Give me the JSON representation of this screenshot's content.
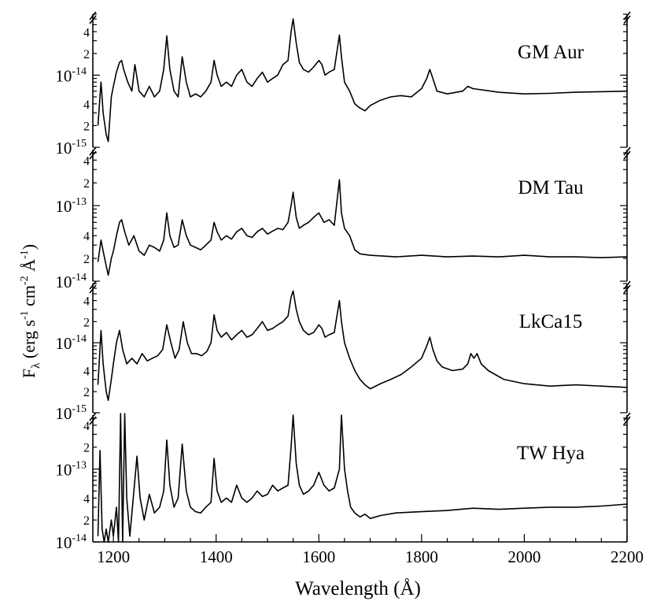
{
  "chart_data": {
    "type": "line",
    "xlabel": "Wavelength (Å)",
    "ylabel": "Fλ (erg s⁻¹ cm⁻² Å⁻¹)",
    "ylabel_parts": {
      "main": "F",
      "sub": "λ",
      "rest": " (erg s",
      "e1": "-1",
      "cm": " cm",
      "e2": "-2",
      "a": " Å",
      "e3": "-1",
      "close": ")"
    },
    "xlim": [
      1160,
      2200
    ],
    "x_ticks": [
      1200,
      1400,
      1600,
      1800,
      2000,
      2200
    ],
    "x_tick_labels": [
      "1200",
      "1400",
      "1600",
      "1800",
      "2000",
      "2200"
    ],
    "yscale": "log",
    "grid": false,
    "line_color": "#000000",
    "panels": [
      {
        "name": "GM Aur",
        "ylim": [
          1e-15,
          7e-14
        ],
        "ticks": [
          {
            "value": 1e-15,
            "label": "10",
            "exp": "-15"
          },
          {
            "value": 2e-15,
            "label": "2"
          },
          {
            "value": 4e-15,
            "label": "4"
          },
          {
            "value": 1e-14,
            "label": "10",
            "exp": "-14"
          },
          {
            "value": 2e-14,
            "label": "2"
          },
          {
            "value": 4e-14,
            "label": "4"
          }
        ],
        "x": [
          1170,
          1176,
          1180,
          1186,
          1190,
          1196,
          1200,
          1206,
          1212,
          1216,
          1220,
          1228,
          1236,
          1242,
          1250,
          1260,
          1270,
          1280,
          1290,
          1298,
          1304,
          1310,
          1318,
          1326,
          1334,
          1342,
          1350,
          1360,
          1370,
          1380,
          1390,
          1396,
          1402,
          1410,
          1420,
          1430,
          1440,
          1450,
          1460,
          1470,
          1480,
          1490,
          1500,
          1510,
          1520,
          1530,
          1540,
          1546,
          1550,
          1556,
          1562,
          1570,
          1580,
          1590,
          1600,
          1606,
          1612,
          1620,
          1630,
          1640,
          1644,
          1650,
          1660,
          1670,
          1680,
          1690,
          1700,
          1720,
          1740,
          1760,
          1780,
          1800,
          1810,
          1816,
          1822,
          1830,
          1850,
          1880,
          1890,
          1900,
          1950,
          2000,
          2050,
          2100,
          2150,
          2200
        ],
        "y": [
          2e-15,
          8e-15,
          3e-15,
          1.5e-15,
          1.2e-15,
          5e-15,
          7e-15,
          1.1e-14,
          1.5e-14,
          1.6e-14,
          1.2e-14,
          8e-15,
          6e-15,
          1.4e-14,
          6e-15,
          5e-15,
          7e-15,
          5e-15,
          6e-15,
          1.2e-14,
          3.5e-14,
          1.2e-14,
          6e-15,
          5e-15,
          1.8e-14,
          8e-15,
          5e-15,
          5.5e-15,
          5e-15,
          6e-15,
          8e-15,
          1.6e-14,
          1e-14,
          7e-15,
          8e-15,
          7e-15,
          1e-14,
          1.2e-14,
          8e-15,
          7e-15,
          9e-15,
          1.1e-14,
          8e-15,
          9e-15,
          1e-14,
          1.4e-14,
          1.6e-14,
          4e-14,
          6e-14,
          2.8e-14,
          1.5e-14,
          1.2e-14,
          1.1e-14,
          1.3e-14,
          1.6e-14,
          1.4e-14,
          1e-14,
          1.1e-14,
          1.2e-14,
          3.6e-14,
          1.8e-14,
          8e-15,
          6e-15,
          4e-15,
          3.5e-15,
          3.2e-15,
          3.8e-15,
          4.5e-15,
          5e-15,
          5.2e-15,
          5e-15,
          6.5e-15,
          9e-15,
          1.2e-14,
          9e-15,
          6e-15,
          5.5e-15,
          6e-15,
          7e-15,
          6.5e-15,
          5.8e-15,
          5.5e-15,
          5.6e-15,
          5.8e-15,
          5.9e-15,
          6e-15
        ]
      },
      {
        "name": "DM Tau",
        "ylim": [
          1e-14,
          5.5e-13
        ],
        "ticks": [
          {
            "value": 1e-14,
            "label": "10",
            "exp": "-14"
          },
          {
            "value": 2e-14,
            "label": "2"
          },
          {
            "value": 4e-14,
            "label": "4"
          },
          {
            "value": 1e-13,
            "label": "10",
            "exp": "-13"
          },
          {
            "value": 2e-13,
            "label": "2"
          },
          {
            "value": 4e-13,
            "label": "4"
          }
        ],
        "x": [
          1170,
          1176,
          1180,
          1186,
          1190,
          1196,
          1200,
          1206,
          1212,
          1216,
          1222,
          1230,
          1240,
          1250,
          1260,
          1270,
          1280,
          1290,
          1298,
          1304,
          1310,
          1318,
          1326,
          1334,
          1342,
          1350,
          1360,
          1370,
          1380,
          1390,
          1396,
          1402,
          1410,
          1420,
          1430,
          1440,
          1450,
          1460,
          1470,
          1480,
          1490,
          1500,
          1510,
          1520,
          1530,
          1540,
          1546,
          1550,
          1556,
          1562,
          1570,
          1580,
          1590,
          1600,
          1610,
          1620,
          1630,
          1640,
          1644,
          1650,
          1660,
          1670,
          1680,
          1700,
          1750,
          1800,
          1850,
          1900,
          1950,
          2000,
          2050,
          2100,
          2150,
          2200
        ],
        "y": [
          1.8e-14,
          3.5e-14,
          2.5e-14,
          1.6e-14,
          1.2e-14,
          2e-14,
          2.5e-14,
          4e-14,
          6e-14,
          6.5e-14,
          4.5e-14,
          3e-14,
          4e-14,
          2.5e-14,
          2.2e-14,
          3e-14,
          2.8e-14,
          2.5e-14,
          3.5e-14,
          8e-14,
          4e-14,
          2.8e-14,
          3e-14,
          6.5e-14,
          4e-14,
          3e-14,
          2.8e-14,
          2.6e-14,
          3e-14,
          3.5e-14,
          6e-14,
          4.5e-14,
          3.5e-14,
          4e-14,
          3.6e-14,
          4.5e-14,
          5e-14,
          4e-14,
          3.8e-14,
          4.5e-14,
          5e-14,
          4.2e-14,
          4.6e-14,
          5e-14,
          4.8e-14,
          6e-14,
          1e-13,
          1.5e-13,
          7e-14,
          5e-14,
          5.5e-14,
          6e-14,
          7e-14,
          8e-14,
          6e-14,
          6.5e-14,
          5.5e-14,
          2.2e-13,
          8e-14,
          5e-14,
          4e-14,
          2.6e-14,
          2.3e-14,
          2.2e-14,
          2.1e-14,
          2.2e-14,
          2.1e-14,
          2.15e-14,
          2.1e-14,
          2.2e-14,
          2.1e-14,
          2.1e-14,
          2.05e-14,
          2.1e-14
        ]
      },
      {
        "name": "LkCa15",
        "ylim": [
          1e-15,
          7e-14
        ],
        "ticks": [
          {
            "value": 1e-15,
            "label": "10",
            "exp": "-15"
          },
          {
            "value": 2e-15,
            "label": "2"
          },
          {
            "value": 4e-15,
            "label": "4"
          },
          {
            "value": 1e-14,
            "label": "10",
            "exp": "-14"
          },
          {
            "value": 2e-14,
            "label": "2"
          },
          {
            "value": 4e-14,
            "label": "4"
          }
        ],
        "x": [
          1170,
          1176,
          1180,
          1186,
          1190,
          1196,
          1200,
          1206,
          1212,
          1218,
          1226,
          1236,
          1246,
          1256,
          1266,
          1276,
          1286,
          1296,
          1304,
          1312,
          1320,
          1328,
          1336,
          1344,
          1352,
          1362,
          1372,
          1382,
          1390,
          1396,
          1402,
          1410,
          1420,
          1430,
          1440,
          1450,
          1460,
          1470,
          1480,
          1490,
          1500,
          1510,
          1520,
          1530,
          1540,
          1546,
          1550,
          1556,
          1562,
          1570,
          1580,
          1590,
          1600,
          1606,
          1612,
          1620,
          1630,
          1640,
          1644,
          1650,
          1660,
          1670,
          1680,
          1690,
          1700,
          1720,
          1740,
          1760,
          1780,
          1800,
          1810,
          1816,
          1822,
          1830,
          1840,
          1860,
          1880,
          1890,
          1896,
          1902,
          1908,
          1916,
          1930,
          1960,
          2000,
          2050,
          2100,
          2150,
          2200
        ],
        "y": [
          2.5e-15,
          1.5e-14,
          5e-15,
          2e-15,
          1.5e-15,
          3e-15,
          5e-15,
          1e-14,
          1.5e-14,
          8e-15,
          5e-15,
          6e-15,
          5e-15,
          7e-15,
          5.5e-15,
          6e-15,
          6.5e-15,
          8e-15,
          1.8e-14,
          1e-14,
          6e-15,
          8e-15,
          2e-14,
          1e-14,
          7e-15,
          7e-15,
          6.5e-15,
          7.5e-15,
          1e-14,
          2.5e-14,
          1.5e-14,
          1.2e-14,
          1.4e-14,
          1.1e-14,
          1.3e-14,
          1.5e-14,
          1.2e-14,
          1.3e-14,
          1.6e-14,
          2e-14,
          1.5e-14,
          1.6e-14,
          1.8e-14,
          2e-14,
          2.4e-14,
          4.5e-14,
          5.5e-14,
          3e-14,
          2e-14,
          1.5e-14,
          1.3e-14,
          1.4e-14,
          1.8e-14,
          1.6e-14,
          1.2e-14,
          1.3e-14,
          1.4e-14,
          4e-14,
          2e-14,
          1e-14,
          6e-15,
          4e-15,
          3e-15,
          2.5e-15,
          2.2e-15,
          2.6e-15,
          3e-15,
          3.5e-15,
          4.5e-15,
          6e-15,
          9e-15,
          1.2e-14,
          8e-15,
          5.5e-15,
          4.5e-15,
          4e-15,
          4.2e-15,
          5e-15,
          7e-15,
          6e-15,
          7e-15,
          5e-15,
          4e-15,
          3e-15,
          2.6e-15,
          2.4e-15,
          2.5e-15,
          2.4e-15,
          2.3e-15
        ]
      },
      {
        "name": "TW Hya",
        "ylim": [
          1e-14,
          5.5e-13
        ],
        "ticks": [
          {
            "value": 1e-14,
            "label": "10",
            "exp": "-14"
          },
          {
            "value": 2e-14,
            "label": "2"
          },
          {
            "value": 4e-14,
            "label": "4"
          },
          {
            "value": 1e-13,
            "label": "10",
            "exp": "-13"
          },
          {
            "value": 2e-13,
            "label": "2"
          },
          {
            "value": 4e-13,
            "label": "4"
          }
        ],
        "x": [
          1170,
          1174,
          1178,
          1182,
          1186,
          1190,
          1196,
          1200,
          1206,
          1210,
          1214,
          1218,
          1222,
          1226,
          1232,
          1240,
          1246,
          1252,
          1260,
          1270,
          1280,
          1290,
          1298,
          1304,
          1310,
          1318,
          1326,
          1334,
          1342,
          1350,
          1360,
          1370,
          1380,
          1390,
          1396,
          1402,
          1410,
          1420,
          1430,
          1440,
          1450,
          1460,
          1470,
          1480,
          1490,
          1500,
          1510,
          1520,
          1530,
          1540,
          1546,
          1550,
          1556,
          1562,
          1570,
          1580,
          1590,
          1600,
          1610,
          1620,
          1630,
          1640,
          1644,
          1650,
          1656,
          1662,
          1670,
          1680,
          1690,
          1700,
          1720,
          1750,
          1800,
          1850,
          1900,
          1950,
          2000,
          2050,
          2100,
          2150,
          2200
        ],
        "y": [
          1.2e-14,
          1.8e-13,
          1.5e-14,
          1e-14,
          1.5e-14,
          1e-14,
          2e-14,
          1.2e-14,
          3e-14,
          1e-14,
          6e-13,
          1e-14,
          6e-13,
          4e-14,
          1.2e-14,
          5e-14,
          1.5e-13,
          4e-14,
          2e-14,
          4.5e-14,
          2.5e-14,
          3e-14,
          5e-14,
          2.5e-13,
          6e-14,
          3e-14,
          4e-14,
          2.2e-13,
          5e-14,
          3e-14,
          2.6e-14,
          2.5e-14,
          3e-14,
          3.5e-14,
          1.4e-13,
          5e-14,
          3.5e-14,
          4e-14,
          3.5e-14,
          6e-14,
          4e-14,
          3.5e-14,
          4e-14,
          5e-14,
          4.2e-14,
          4.5e-14,
          6e-14,
          5e-14,
          5.5e-14,
          6e-14,
          2e-13,
          5.5e-13,
          1.2e-13,
          6e-14,
          4.5e-14,
          5e-14,
          6e-14,
          9e-14,
          6e-14,
          5e-14,
          5.5e-14,
          1e-13,
          5.5e-13,
          1e-13,
          5e-14,
          3e-14,
          2.5e-14,
          2.2e-14,
          2.4e-14,
          2.1e-14,
          2.3e-14,
          2.5e-14,
          2.6e-14,
          2.7e-14,
          2.9e-14,
          2.8e-14,
          2.9e-14,
          3e-14,
          3e-14,
          3.1e-14,
          3.3e-14
        ]
      }
    ]
  }
}
